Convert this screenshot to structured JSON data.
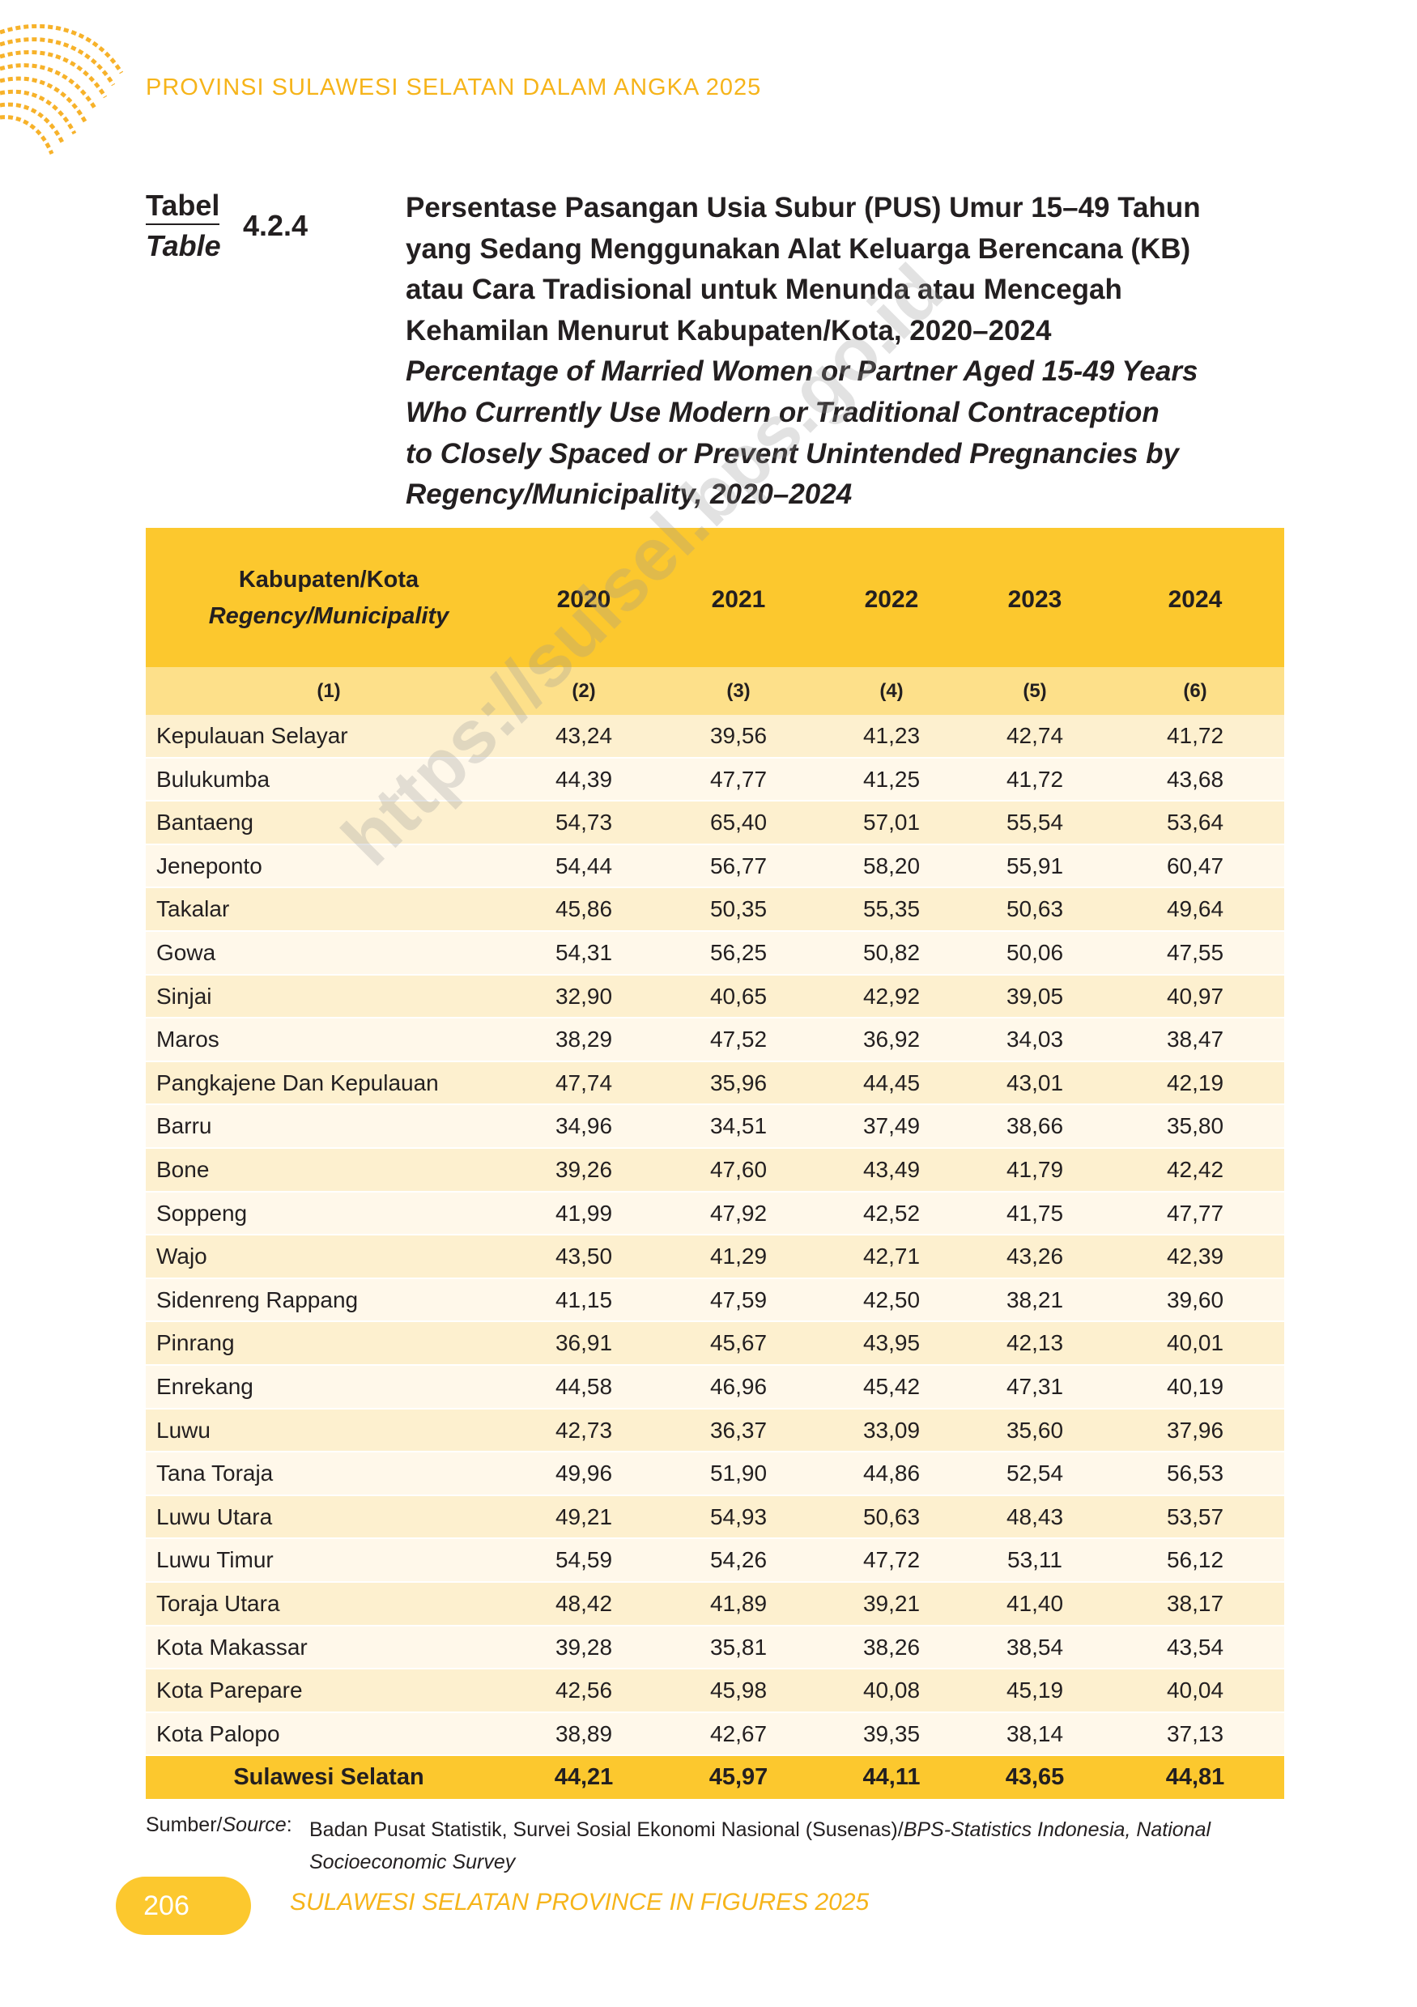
{
  "header": {
    "running_title": "PROVINSI SULAWESI SELATAN DALAM ANGKA 2025"
  },
  "caption": {
    "label": "Tabel",
    "label_en": "Table",
    "number": "4.2.4",
    "title_lines": [
      "Persentase Pasangan Usia Subur (PUS) Umur 15–49 Tahun",
      "yang Sedang Menggunakan Alat Keluarga Berencana (KB)",
      "atau Cara Tradisional untuk Menunda atau Mencegah",
      "Kehamilan Menurut Kabupaten/Kota, 2020–2024"
    ],
    "title_en_lines": [
      "Percentage of Married Women or Partner Aged 15-49 Years",
      "Who Currently Use Modern or Traditional Contraception",
      "to Closely Spaced or Prevent Unintended Pregnancies by",
      "Regency/Municipality, 2020–2024"
    ]
  },
  "watermark": "https://sulsel.bps.go.id",
  "table": {
    "header": {
      "region": "Kabupaten/Kota",
      "region_en": "Regency/Municipality",
      "years": [
        "2020",
        "2021",
        "2022",
        "2023",
        "2024"
      ]
    },
    "column_numbers": [
      "(1)",
      "(2)",
      "(3)",
      "(4)",
      "(5)",
      "(6)"
    ],
    "rows": [
      [
        "Kepulauan Selayar",
        "43,24",
        "39,56",
        "41,23",
        "42,74",
        "41,72"
      ],
      [
        "Bulukumba",
        "44,39",
        "47,77",
        "41,25",
        "41,72",
        "43,68"
      ],
      [
        "Bantaeng",
        "54,73",
        "65,40",
        "57,01",
        "55,54",
        "53,64"
      ],
      [
        "Jeneponto",
        "54,44",
        "56,77",
        "58,20",
        "55,91",
        "60,47"
      ],
      [
        "Takalar",
        "45,86",
        "50,35",
        "55,35",
        "50,63",
        "49,64"
      ],
      [
        "Gowa",
        "54,31",
        "56,25",
        "50,82",
        "50,06",
        "47,55"
      ],
      [
        "Sinjai",
        "32,90",
        "40,65",
        "42,92",
        "39,05",
        "40,97"
      ],
      [
        "Maros",
        "38,29",
        "47,52",
        "36,92",
        "34,03",
        "38,47"
      ],
      [
        "Pangkajene Dan Kepulauan",
        "47,74",
        "35,96",
        "44,45",
        "43,01",
        "42,19"
      ],
      [
        "Barru",
        "34,96",
        "34,51",
        "37,49",
        "38,66",
        "35,80"
      ],
      [
        "Bone",
        "39,26",
        "47,60",
        "43,49",
        "41,79",
        "42,42"
      ],
      [
        "Soppeng",
        "41,99",
        "47,92",
        "42,52",
        "41,75",
        "47,77"
      ],
      [
        "Wajo",
        "43,50",
        "41,29",
        "42,71",
        "43,26",
        "42,39"
      ],
      [
        "Sidenreng Rappang",
        "41,15",
        "47,59",
        "42,50",
        "38,21",
        "39,60"
      ],
      [
        "Pinrang",
        "36,91",
        "45,67",
        "43,95",
        "42,13",
        "40,01"
      ],
      [
        "Enrekang",
        "44,58",
        "46,96",
        "45,42",
        "47,31",
        "40,19"
      ],
      [
        "Luwu",
        "42,73",
        "36,37",
        "33,09",
        "35,60",
        "37,96"
      ],
      [
        "Tana Toraja",
        "49,96",
        "51,90",
        "44,86",
        "52,54",
        "56,53"
      ],
      [
        "Luwu Utara",
        "49,21",
        "54,93",
        "50,63",
        "48,43",
        "53,57"
      ],
      [
        "Luwu Timur",
        "54,59",
        "54,26",
        "47,72",
        "53,11",
        "56,12"
      ],
      [
        "Toraja Utara",
        "48,42",
        "41,89",
        "39,21",
        "41,40",
        "38,17"
      ],
      [
        "Kota Makassar",
        "39,28",
        "35,81",
        "38,26",
        "38,54",
        "43,54"
      ],
      [
        "Kota Parepare",
        "42,56",
        "45,98",
        "40,08",
        "45,19",
        "40,04"
      ],
      [
        "Kota Palopo",
        "38,89",
        "42,67",
        "39,35",
        "38,14",
        "37,13"
      ]
    ],
    "total": [
      "Sulawesi Selatan",
      "44,21",
      "45,97",
      "44,11",
      "43,65",
      "44,81"
    ]
  },
  "source": {
    "label": "Sumber/",
    "label_en": "Source",
    "separator": ":",
    "text": "Badan Pusat Statistik, Survei Sosial Ekonomi Nasional (Susenas)/",
    "text_en": "BPS-Statistics Indonesia, National Socioeconomic Survey"
  },
  "footer": {
    "page": "206",
    "title": "SULAWESI SELATAN PROVINCE IN FIGURES 2025"
  }
}
